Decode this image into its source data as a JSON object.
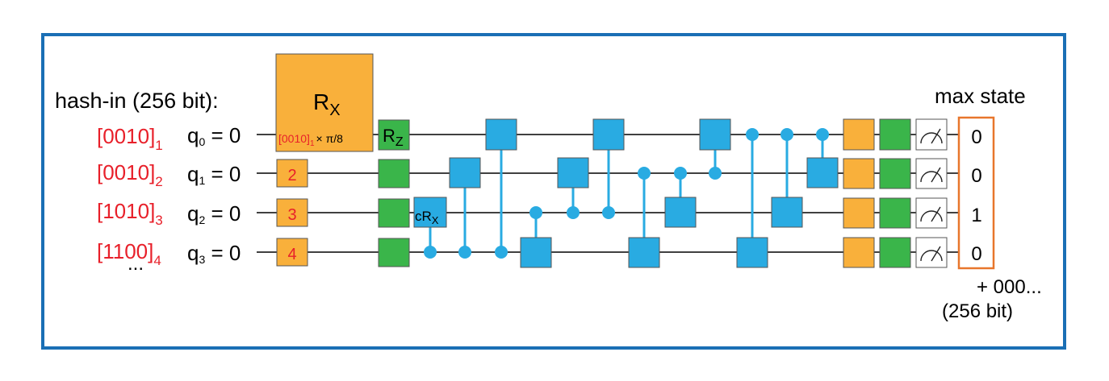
{
  "hash_in": {
    "label": "hash-in (256 bit):",
    "blocks": [
      {
        "bits": "0010",
        "sub": "1"
      },
      {
        "bits": "0010",
        "sub": "2"
      },
      {
        "bits": "1010",
        "sub": "3"
      },
      {
        "bits": "1100",
        "sub": "4"
      }
    ],
    "ellipsis": "..."
  },
  "qubits": [
    {
      "q": "q",
      "sub": "0",
      "init": " = 0"
    },
    {
      "q": "q",
      "sub": "1",
      "init": " = 0"
    },
    {
      "q": "q",
      "sub": "2",
      "init": " = 0"
    },
    {
      "q": "q",
      "sub": "3",
      "init": " = 0"
    }
  ],
  "rx_gate": {
    "symbol": "R",
    "sub": "X",
    "angle_bits": "[0010]",
    "angle_sub": "1",
    "angle_rest": "× π/8"
  },
  "encoding_gates": [
    "2",
    "3",
    "4"
  ],
  "rz_gate": {
    "symbol": "R",
    "sub": "Z"
  },
  "crx_gate": {
    "symbol": "cR",
    "sub": "X"
  },
  "max_state": {
    "label": "max state",
    "values": [
      "0",
      "0",
      "1",
      "0"
    ],
    "suffix": "+ 000...",
    "suffix2": "(256 bit)"
  },
  "colors": {
    "border": "#1a6fb5",
    "orange": "#f9b03b",
    "green": "#3ab54a",
    "blue": "#29abe2",
    "red": "#e8202a",
    "wire": "#000000",
    "state_box": "#e8762c"
  },
  "icons": [
    "measurement-icon"
  ]
}
